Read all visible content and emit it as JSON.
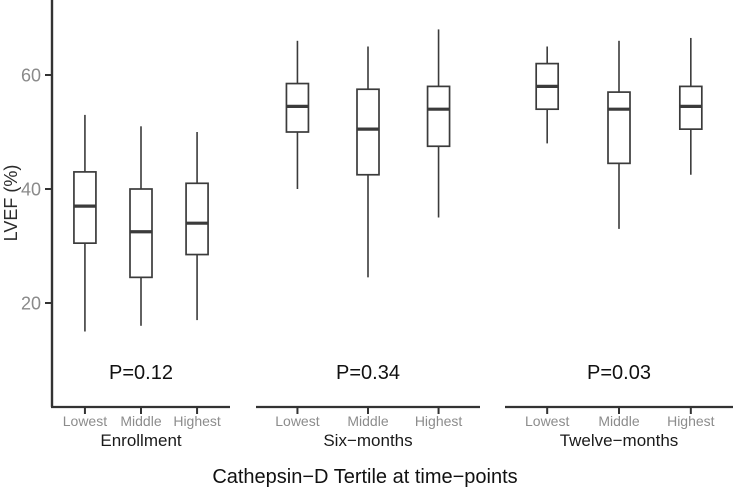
{
  "colors": {
    "background": "#ffffff",
    "box_stroke": "#3b3b3b",
    "box_fill": "#ffffff",
    "axis_line": "#333333",
    "tick_label_gray": "#8a8a8a",
    "text_black": "#111111"
  },
  "chart_data": {
    "type": "boxplot",
    "title": "",
    "xlabel": "Cathepsin−D Tertile at time−points",
    "ylabel": "LVEF (%)",
    "y_ticks": [
      20,
      40,
      60
    ],
    "ylim_shown": [
      2,
      73
    ],
    "grid": "off",
    "categories": [
      "Lowest",
      "Middle",
      "Highest"
    ],
    "facets": [
      {
        "label": "Enrollment",
        "p_value": "P=0.12",
        "boxes": [
          {
            "category": "Lowest",
            "whisker_low": 15,
            "q1": 30.5,
            "median": 37,
            "q3": 43,
            "whisker_high": 53
          },
          {
            "category": "Middle",
            "whisker_low": 16,
            "q1": 24.5,
            "median": 32.5,
            "q3": 40,
            "whisker_high": 51
          },
          {
            "category": "Highest",
            "whisker_low": 17,
            "q1": 28.5,
            "median": 34,
            "q3": 41,
            "whisker_high": 50
          }
        ]
      },
      {
        "label": "Six−months",
        "p_value": "P=0.34",
        "boxes": [
          {
            "category": "Lowest",
            "whisker_low": 40,
            "q1": 50,
            "median": 54.5,
            "q3": 58.5,
            "whisker_high": 66
          },
          {
            "category": "Middle",
            "whisker_low": 24.5,
            "q1": 42.5,
            "median": 50.5,
            "q3": 57.5,
            "whisker_high": 65
          },
          {
            "category": "Highest",
            "whisker_low": 35,
            "q1": 47.5,
            "median": 54,
            "q3": 58,
            "whisker_high": 68
          }
        ]
      },
      {
        "label": "Twelve−months",
        "p_value": "P=0.03",
        "boxes": [
          {
            "category": "Lowest",
            "whisker_low": 48,
            "q1": 54,
            "median": 58,
            "q3": 62,
            "whisker_high": 65
          },
          {
            "category": "Middle",
            "whisker_low": 33,
            "q1": 44.5,
            "median": 54,
            "q3": 57,
            "whisker_high": 66
          },
          {
            "category": "Highest",
            "whisker_low": 42.5,
            "q1": 50.5,
            "median": 54.5,
            "q3": 58,
            "whisker_high": 66.5
          }
        ]
      }
    ]
  }
}
